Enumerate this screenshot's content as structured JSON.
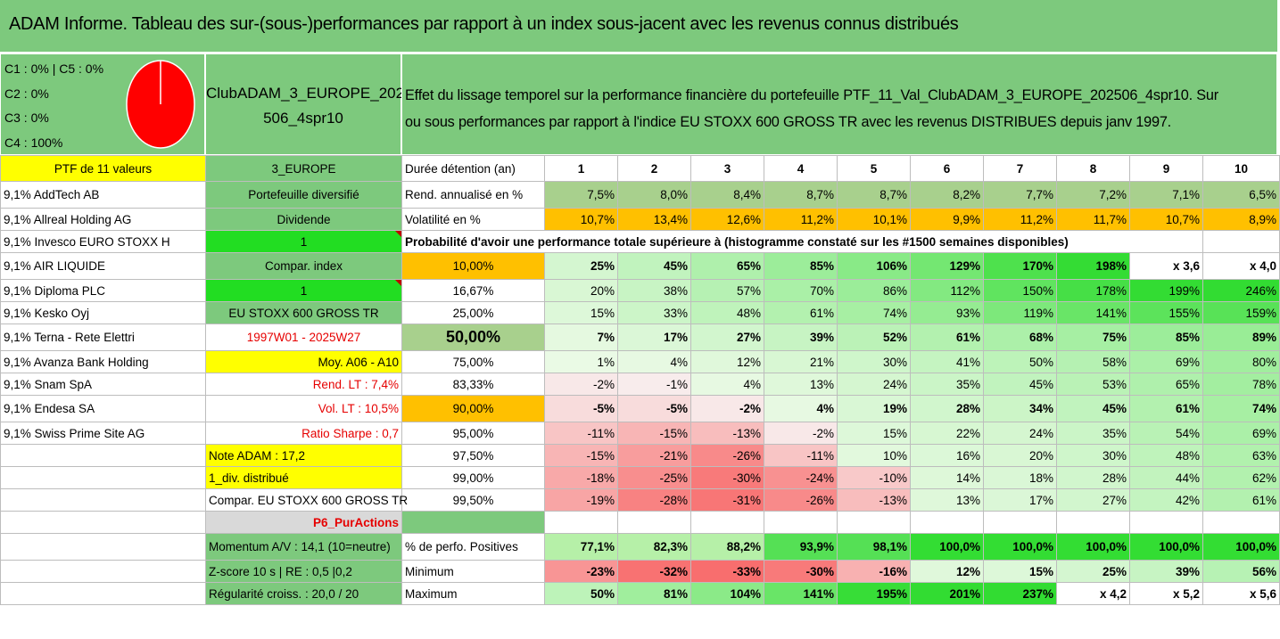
{
  "title": "ADAM Informe. Tableau des sur-(sous-)performances par rapport à un index sous-jacent avec les revenus connus distribués",
  "header": {
    "classes": [
      "C1 : 0% | C5 : 0%",
      "C2 : 0%",
      "C3 : 0%",
      "C4 : 100%"
    ],
    "portfolio_line1": "ClubADAM_3_EUROPE_202",
    "portfolio_line2": "506_4spr10",
    "description_line1": "Effet du lissage temporel sur la performance financière du portefeuille PTF_11_Val_ClubADAM_3_EUROPE_202506_4spr10. Sur",
    "description_line2": "ou sous performances par rapport à l'indice EU STOXX 600 GROSS TR avec les revenus DISTRIBUES depuis janv 1997."
  },
  "pie": {
    "color": "#ff0000",
    "share_c4": 100
  },
  "holdings_header": "PTF de 11 valeurs",
  "holdings": [
    "9,1% AddTech AB",
    "9,1% Allreal Holding AG",
    "9,1% Invesco EURO STOXX H",
    "9,1% AIR LIQUIDE",
    "9,1% Diploma PLC",
    "9,1% Kesko Oyj",
    "9,1% Terna - Rete Elettri",
    "9,1% Avanza Bank Holding",
    "9,1% Snam SpA",
    "9,1% Endesa SA",
    "9,1% Swiss Prime Site AG"
  ],
  "info": {
    "region": "3_EUROPE",
    "diversification": "Portefeuille diversifié",
    "dividend": "Dividende",
    "value1": "1",
    "compar_index": "Compar. index",
    "value2": "1",
    "index_name": "EU STOXX 600 GROSS TR",
    "period": "1997W01 - 2025W27",
    "moy": "Moy. A06 - A10",
    "rend_lt": "Rend. LT : 7,4%",
    "vol_lt": "Vol. LT : 10,5%",
    "sharpe": "Ratio Sharpe : 0,7",
    "note": "Note ADAM : 17,2",
    "div": "1_div. distribué",
    "compar_full": "Compar. EU STOXX 600 GROSS TR",
    "purchase": "P6_PurActions",
    "momentum": "Momentum A/V : 14,1 (10=neutre)",
    "zscore": "Z-score 10 s | RE : 0,5 |0,2",
    "regularity": "Régularité croiss. : 20,0 / 20"
  },
  "years_label": "Durée détention (an)",
  "years": [
    "1",
    "2",
    "3",
    "4",
    "5",
    "6",
    "7",
    "8",
    "9",
    "10"
  ],
  "rend_label": "Rend. annualisé en %",
  "rend": [
    "7,5%",
    "8,0%",
    "8,4%",
    "8,7%",
    "8,7%",
    "8,2%",
    "7,7%",
    "7,2%",
    "7,1%",
    "6,5%"
  ],
  "vol_label": "Volatilité en %",
  "vol": [
    "10,7%",
    "13,4%",
    "12,6%",
    "11,2%",
    "10,1%",
    "9,9%",
    "11,2%",
    "11,7%",
    "10,7%",
    "8,9%"
  ],
  "prob_label": "Probabilité d'avoir une performance totale supérieure à (histogramme constaté sur les #1500 semaines disponibles)",
  "quantiles": [
    {
      "p": "10,00%",
      "v": [
        "25%",
        "45%",
        "65%",
        "85%",
        "106%",
        "129%",
        "170%",
        "198%",
        "x 3,6",
        "x 4,0"
      ]
    },
    {
      "p": "16,67%",
      "v": [
        "20%",
        "38%",
        "57%",
        "70%",
        "86%",
        "112%",
        "150%",
        "178%",
        "199%",
        "246%"
      ]
    },
    {
      "p": "25,00%",
      "v": [
        "15%",
        "33%",
        "48%",
        "61%",
        "74%",
        "93%",
        "119%",
        "141%",
        "155%",
        "159%"
      ]
    },
    {
      "p": "50,00%",
      "v": [
        "7%",
        "17%",
        "27%",
        "39%",
        "52%",
        "61%",
        "68%",
        "75%",
        "85%",
        "89%"
      ]
    },
    {
      "p": "75,00%",
      "v": [
        "1%",
        "4%",
        "12%",
        "21%",
        "30%",
        "41%",
        "50%",
        "58%",
        "69%",
        "80%"
      ]
    },
    {
      "p": "83,33%",
      "v": [
        "-2%",
        "-1%",
        "4%",
        "13%",
        "24%",
        "35%",
        "45%",
        "53%",
        "65%",
        "78%"
      ]
    },
    {
      "p": "90,00%",
      "v": [
        "-5%",
        "-5%",
        "-2%",
        "4%",
        "19%",
        "28%",
        "34%",
        "45%",
        "61%",
        "74%"
      ]
    },
    {
      "p": "95,00%",
      "v": [
        "-11%",
        "-15%",
        "-13%",
        "-2%",
        "15%",
        "22%",
        "24%",
        "35%",
        "54%",
        "69%"
      ]
    },
    {
      "p": "97,50%",
      "v": [
        "-15%",
        "-21%",
        "-26%",
        "-11%",
        "10%",
        "16%",
        "20%",
        "30%",
        "48%",
        "63%"
      ]
    },
    {
      "p": "99,00%",
      "v": [
        "-18%",
        "-25%",
        "-30%",
        "-24%",
        "-10%",
        "14%",
        "18%",
        "28%",
        "44%",
        "62%"
      ]
    },
    {
      "p": "99,50%",
      "v": [
        "-19%",
        "-28%",
        "-31%",
        "-26%",
        "-13%",
        "13%",
        "17%",
        "27%",
        "42%",
        "61%"
      ]
    }
  ],
  "pos_label": "% de perfo. Positives",
  "pos": [
    "77,1%",
    "82,3%",
    "88,2%",
    "93,9%",
    "98,1%",
    "100,0%",
    "100,0%",
    "100,0%",
    "100,0%",
    "100,0%"
  ],
  "min_label": "Minimum",
  "min": [
    "-23%",
    "-32%",
    "-33%",
    "-30%",
    "-16%",
    "12%",
    "15%",
    "25%",
    "39%",
    "56%"
  ],
  "max_label": "Maximum",
  "max": [
    "50%",
    "81%",
    "104%",
    "141%",
    "195%",
    "201%",
    "237%",
    "x 4,2",
    "x 5,2",
    "x 5,6"
  ]
}
